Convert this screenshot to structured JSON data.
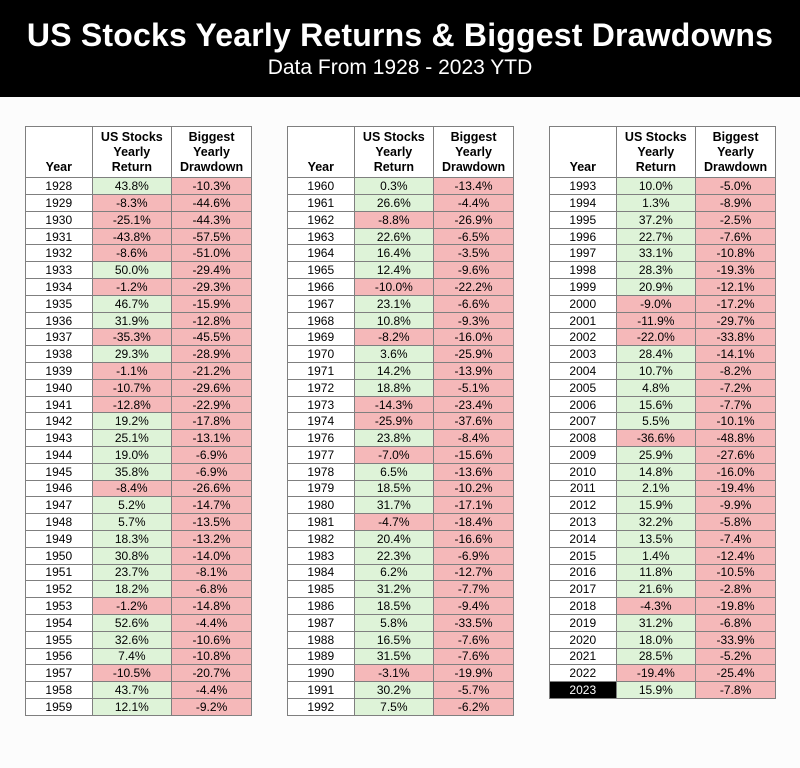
{
  "banner": {
    "title": "US Stocks Yearly Returns & Biggest Drawdowns",
    "subtitle": "Data From 1928 - 2023 YTD"
  },
  "colors": {
    "banner_bg": "#000000",
    "banner_text": "#ffffff",
    "positive_cell_bg": "#def3d8",
    "negative_cell_bg": "#f5b8b9",
    "year_cell_bg": "#ffffff",
    "highlight_year_bg": "#000000",
    "highlight_year_text": "#ffffff",
    "border": "#7f7f7f",
    "page_bg": "#fcfcfc",
    "text": "#000000"
  },
  "chart_data": {
    "type": "table",
    "title": "US Stocks Yearly Returns & Biggest Drawdowns",
    "subtitle": "Data From 1928 - 2023 YTD",
    "columns": [
      "Year",
      "US Stocks\nYearly\nReturn",
      "Biggest\nYearly\nDrawdown"
    ],
    "highlight_year": "2023",
    "tables": [
      {
        "rows": [
          [
            "1928",
            "43.8%",
            "-10.3%"
          ],
          [
            "1929",
            "-8.3%",
            "-44.6%"
          ],
          [
            "1930",
            "-25.1%",
            "-44.3%"
          ],
          [
            "1931",
            "-43.8%",
            "-57.5%"
          ],
          [
            "1932",
            "-8.6%",
            "-51.0%"
          ],
          [
            "1933",
            "50.0%",
            "-29.4%"
          ],
          [
            "1934",
            "-1.2%",
            "-29.3%"
          ],
          [
            "1935",
            "46.7%",
            "-15.9%"
          ],
          [
            "1936",
            "31.9%",
            "-12.8%"
          ],
          [
            "1937",
            "-35.3%",
            "-45.5%"
          ],
          [
            "1938",
            "29.3%",
            "-28.9%"
          ],
          [
            "1939",
            "-1.1%",
            "-21.2%"
          ],
          [
            "1940",
            "-10.7%",
            "-29.6%"
          ],
          [
            "1941",
            "-12.8%",
            "-22.9%"
          ],
          [
            "1942",
            "19.2%",
            "-17.8%"
          ],
          [
            "1943",
            "25.1%",
            "-13.1%"
          ],
          [
            "1944",
            "19.0%",
            "-6.9%"
          ],
          [
            "1945",
            "35.8%",
            "-6.9%"
          ],
          [
            "1946",
            "-8.4%",
            "-26.6%"
          ],
          [
            "1947",
            "5.2%",
            "-14.7%"
          ],
          [
            "1948",
            "5.7%",
            "-13.5%"
          ],
          [
            "1949",
            "18.3%",
            "-13.2%"
          ],
          [
            "1950",
            "30.8%",
            "-14.0%"
          ],
          [
            "1951",
            "23.7%",
            "-8.1%"
          ],
          [
            "1952",
            "18.2%",
            "-6.8%"
          ],
          [
            "1953",
            "-1.2%",
            "-14.8%"
          ],
          [
            "1954",
            "52.6%",
            "-4.4%"
          ],
          [
            "1955",
            "32.6%",
            "-10.6%"
          ],
          [
            "1956",
            "7.4%",
            "-10.8%"
          ],
          [
            "1957",
            "-10.5%",
            "-20.7%"
          ],
          [
            "1958",
            "43.7%",
            "-4.4%"
          ],
          [
            "1959",
            "12.1%",
            "-9.2%"
          ]
        ]
      },
      {
        "rows": [
          [
            "1960",
            "0.3%",
            "-13.4%"
          ],
          [
            "1961",
            "26.6%",
            "-4.4%"
          ],
          [
            "1962",
            "-8.8%",
            "-26.9%"
          ],
          [
            "1963",
            "22.6%",
            "-6.5%"
          ],
          [
            "1964",
            "16.4%",
            "-3.5%"
          ],
          [
            "1965",
            "12.4%",
            "-9.6%"
          ],
          [
            "1966",
            "-10.0%",
            "-22.2%"
          ],
          [
            "1967",
            "23.1%",
            "-6.6%"
          ],
          [
            "1968",
            "10.8%",
            "-9.3%"
          ],
          [
            "1969",
            "-8.2%",
            "-16.0%"
          ],
          [
            "1970",
            "3.6%",
            "-25.9%"
          ],
          [
            "1971",
            "14.2%",
            "-13.9%"
          ],
          [
            "1972",
            "18.8%",
            "-5.1%"
          ],
          [
            "1973",
            "-14.3%",
            "-23.4%"
          ],
          [
            "1974",
            "-25.9%",
            "-37.6%"
          ],
          [
            "1976",
            "23.8%",
            "-8.4%"
          ],
          [
            "1977",
            "-7.0%",
            "-15.6%"
          ],
          [
            "1978",
            "6.5%",
            "-13.6%"
          ],
          [
            "1979",
            "18.5%",
            "-10.2%"
          ],
          [
            "1980",
            "31.7%",
            "-17.1%"
          ],
          [
            "1981",
            "-4.7%",
            "-18.4%"
          ],
          [
            "1982",
            "20.4%",
            "-16.6%"
          ],
          [
            "1983",
            "22.3%",
            "-6.9%"
          ],
          [
            "1984",
            "6.2%",
            "-12.7%"
          ],
          [
            "1985",
            "31.2%",
            "-7.7%"
          ],
          [
            "1986",
            "18.5%",
            "-9.4%"
          ],
          [
            "1987",
            "5.8%",
            "-33.5%"
          ],
          [
            "1988",
            "16.5%",
            "-7.6%"
          ],
          [
            "1989",
            "31.5%",
            "-7.6%"
          ],
          [
            "1990",
            "-3.1%",
            "-19.9%"
          ],
          [
            "1991",
            "30.2%",
            "-5.7%"
          ],
          [
            "1992",
            "7.5%",
            "-6.2%"
          ]
        ]
      },
      {
        "rows": [
          [
            "1993",
            "10.0%",
            "-5.0%"
          ],
          [
            "1994",
            "1.3%",
            "-8.9%"
          ],
          [
            "1995",
            "37.2%",
            "-2.5%"
          ],
          [
            "1996",
            "22.7%",
            "-7.6%"
          ],
          [
            "1997",
            "33.1%",
            "-10.8%"
          ],
          [
            "1998",
            "28.3%",
            "-19.3%"
          ],
          [
            "1999",
            "20.9%",
            "-12.1%"
          ],
          [
            "2000",
            "-9.0%",
            "-17.2%"
          ],
          [
            "2001",
            "-11.9%",
            "-29.7%"
          ],
          [
            "2002",
            "-22.0%",
            "-33.8%"
          ],
          [
            "2003",
            "28.4%",
            "-14.1%"
          ],
          [
            "2004",
            "10.7%",
            "-8.2%"
          ],
          [
            "2005",
            "4.8%",
            "-7.2%"
          ],
          [
            "2006",
            "15.6%",
            "-7.7%"
          ],
          [
            "2007",
            "5.5%",
            "-10.1%"
          ],
          [
            "2008",
            "-36.6%",
            "-48.8%"
          ],
          [
            "2009",
            "25.9%",
            "-27.6%"
          ],
          [
            "2010",
            "14.8%",
            "-16.0%"
          ],
          [
            "2011",
            "2.1%",
            "-19.4%"
          ],
          [
            "2012",
            "15.9%",
            "-9.9%"
          ],
          [
            "2013",
            "32.2%",
            "-5.8%"
          ],
          [
            "2014",
            "13.5%",
            "-7.4%"
          ],
          [
            "2015",
            "1.4%",
            "-12.4%"
          ],
          [
            "2016",
            "11.8%",
            "-10.5%"
          ],
          [
            "2017",
            "21.6%",
            "-2.8%"
          ],
          [
            "2018",
            "-4.3%",
            "-19.8%"
          ],
          [
            "2019",
            "31.2%",
            "-6.8%"
          ],
          [
            "2020",
            "18.0%",
            "-33.9%"
          ],
          [
            "2021",
            "28.5%",
            "-5.2%"
          ],
          [
            "2022",
            "-19.4%",
            "-25.4%"
          ],
          [
            "2023",
            "15.9%",
            "-7.8%"
          ]
        ]
      }
    ]
  }
}
